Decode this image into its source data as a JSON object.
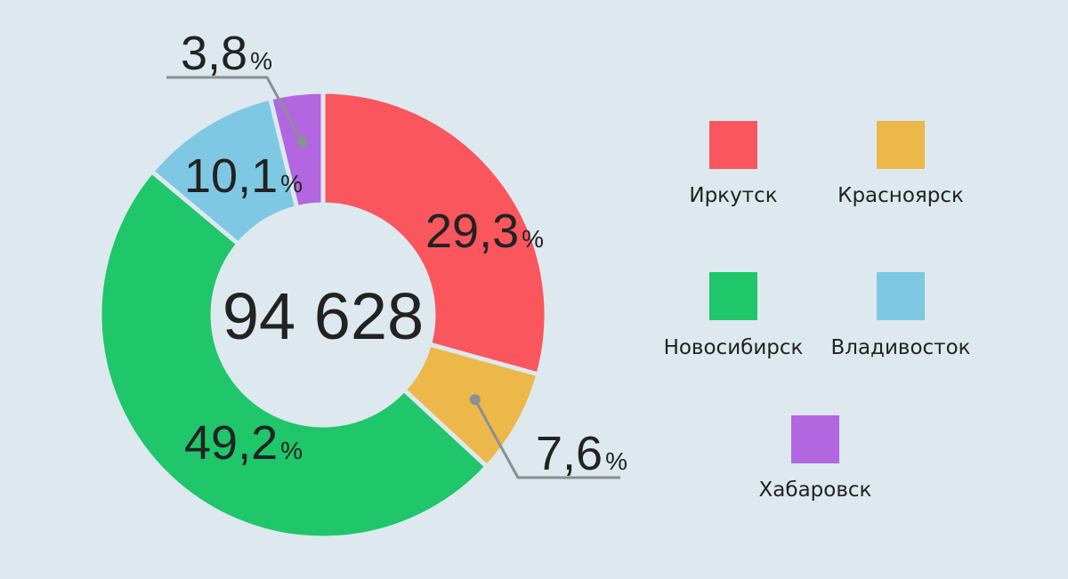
{
  "chart_data": {
    "type": "pie",
    "donut": true,
    "center_total": "94 628",
    "slices": [
      {
        "label": "Иркутск",
        "value": 29.3,
        "display": "29,3",
        "color": "#f9565e"
      },
      {
        "label": "Красноярск",
        "value": 7.6,
        "display": "7,6",
        "color": "#ecb84a"
      },
      {
        "label": "Новосибирск",
        "value": 49.2,
        "display": "49,2",
        "color": "#1fc66a"
      },
      {
        "label": "Владивосток",
        "value": 10.1,
        "display": "10,1",
        "color": "#7ec8e3"
      },
      {
        "label": "Хабаровск",
        "value": 3.8,
        "display": "3,8",
        "color": "#b266e0"
      }
    ],
    "percent_sign": "%",
    "legend_placement": "right",
    "background_color": "#dde9ee",
    "leader_color": "#8a8f93"
  }
}
